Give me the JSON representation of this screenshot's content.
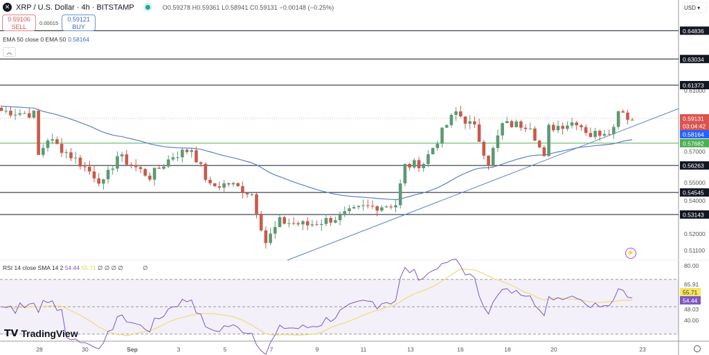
{
  "header": {
    "symbol": "XRP / U.S. Dollar · 4h · BITSTAMP",
    "ohlc": "O0.59278 H0.59361 L0.58941 C0.59131 −0.00148 (−0.25%)"
  },
  "trade": {
    "sell_price": "0.59106",
    "sell_label": "SELL",
    "spread": "0.00015",
    "buy_price": "0.59121",
    "buy_label": "BUY"
  },
  "ema": {
    "label": "EMA 50 close 0 EMA 50",
    "value": "0.58164"
  },
  "rsi": {
    "label": "RSI 14 close SMA 14 2",
    "rsi_value": "54.44",
    "sma_value": "55.71",
    "extra": "∅ ∅ ∅ ∅",
    "extra2": "∅"
  },
  "currency": "USD",
  "brand": "TradingView",
  "colors": {
    "up": "#5b9a74",
    "down": "#c9594a",
    "ema": "#5b7fc8",
    "support": "#4caf50",
    "rsi": "#7e57c2",
    "rsi_sma": "#f0dc82"
  },
  "chart_data": {
    "type": "candlestick",
    "timeframe": "4h",
    "x_ticks": [
      "28",
      "30",
      "Sep",
      "3",
      "5",
      "7",
      "9",
      "11",
      "13",
      "16",
      "18",
      "20",
      "23"
    ],
    "y_ticks": [
      "0.61000",
      "0.57000",
      "0.55000",
      "0.54000",
      "0.52000",
      "0.51100"
    ],
    "horizontal_levels": [
      {
        "value": "0.64836",
        "color": "#131722"
      },
      {
        "value": "0.63034",
        "color": "#131722"
      },
      {
        "value": "0.61373",
        "color": "#131722"
      },
      {
        "value": "0.56263",
        "color": "#131722"
      },
      {
        "value": "0.54545",
        "color": "#131722"
      },
      {
        "value": "0.53143",
        "color": "#131722"
      },
      {
        "value": "0.57682",
        "color": "#4caf50"
      }
    ],
    "last_price": "0.59131",
    "countdown": "03:04:42",
    "ema_value": "0.58164",
    "close_path_approx": [
      [
        0,
        0.5974
      ],
      [
        7,
        0.5952
      ],
      [
        8,
        0.5688
      ],
      [
        10,
        0.5798
      ],
      [
        16,
        0.5666
      ],
      [
        22,
        0.5512
      ],
      [
        25,
        0.5688
      ],
      [
        32,
        0.5556
      ],
      [
        37,
        0.5688
      ],
      [
        41,
        0.5732
      ],
      [
        45,
        0.549
      ],
      [
        49,
        0.5512
      ],
      [
        54,
        0.5446
      ],
      [
        57,
        0.5138
      ],
      [
        60,
        0.527
      ],
      [
        66,
        0.5248
      ],
      [
        72,
        0.5292
      ],
      [
        78,
        0.5358
      ],
      [
        85,
        0.538
      ],
      [
        87,
        0.5622
      ],
      [
        91,
        0.5644
      ],
      [
        96,
        0.5886
      ],
      [
        98,
        0.5965
      ],
      [
        102,
        0.5864
      ],
      [
        105,
        0.5644
      ],
      [
        108,
        0.5886
      ],
      [
        114,
        0.5886
      ],
      [
        117,
        0.5666
      ],
      [
        118,
        0.5864
      ],
      [
        124,
        0.5908
      ],
      [
        127,
        0.582
      ],
      [
        132,
        0.5864
      ],
      [
        133,
        0.5996
      ],
      [
        136,
        0.5913
      ]
    ],
    "rsi_ticks": [
      "80.00",
      "65.91",
      "48.03",
      "40.00"
    ],
    "rsi_range": [
      20,
      85
    ],
    "rsi_bands": [
      70,
      30
    ]
  }
}
